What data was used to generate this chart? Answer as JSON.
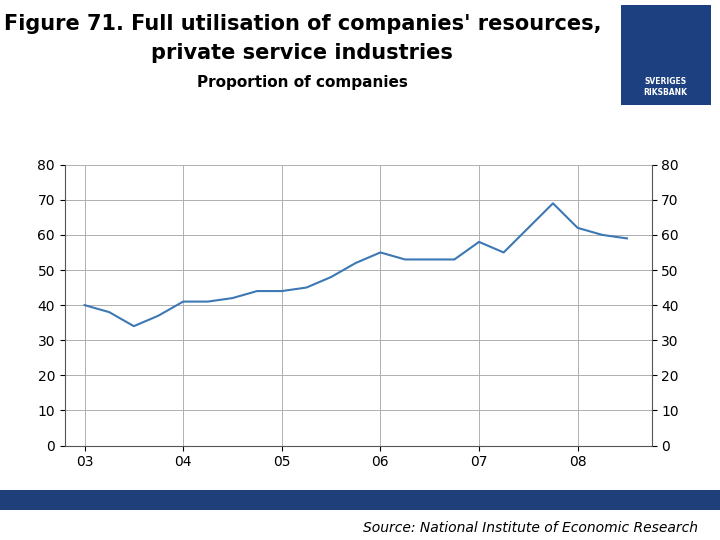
{
  "title_line1": "Figure 71. Full utilisation of companies' resources,",
  "title_line2": "private service industries",
  "subtitle": "Proportion of companies",
  "source": "Source: National Institute of Economic Research",
  "line_color": "#3c78b4",
  "line_width": 1.5,
  "background_color": "#ffffff",
  "grid_color": "#b0b0b0",
  "ylim": [
    0,
    80
  ],
  "yticks": [
    0,
    10,
    20,
    30,
    40,
    50,
    60,
    70,
    80
  ],
  "xtick_labels": [
    "03",
    "04",
    "05",
    "06",
    "07",
    "08"
  ],
  "footer_bar_color": "#1e3f7a",
  "x_data": [
    2003.0,
    2003.25,
    2003.5,
    2003.75,
    2004.0,
    2004.25,
    2004.5,
    2004.75,
    2005.0,
    2005.25,
    2005.5,
    2005.75,
    2006.0,
    2006.25,
    2006.5,
    2006.75,
    2007.0,
    2007.25,
    2007.5,
    2007.75,
    2008.0,
    2008.25,
    2008.5
  ],
  "y_data": [
    40,
    38,
    34,
    37,
    41,
    41,
    42,
    44,
    44,
    45,
    48,
    52,
    55,
    53,
    53,
    53,
    58,
    55,
    62,
    69,
    62,
    60,
    59
  ],
  "xlim_left": 2002.8,
  "xlim_right": 2008.75,
  "xtick_positions": [
    2003,
    2004,
    2005,
    2006,
    2007,
    2008
  ],
  "title1_fontsize": 15,
  "title2_fontsize": 15,
  "subtitle_fontsize": 11,
  "tick_fontsize": 10,
  "source_fontsize": 10,
  "logo_color": "#1d4080"
}
